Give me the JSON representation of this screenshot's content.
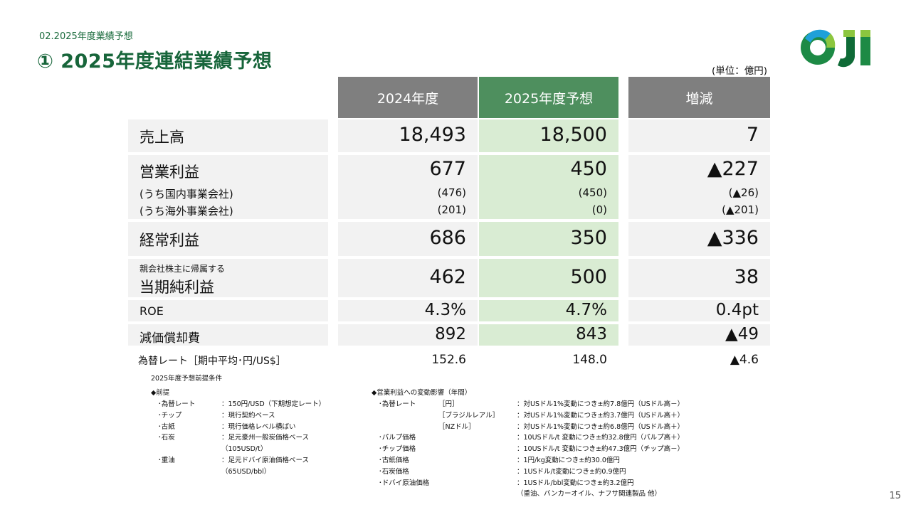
{
  "section_label": "02.2025年度業績予想",
  "title": "① 2025年度連結業績予想",
  "unit": "(単位：億円)",
  "page_number": "15",
  "logo": {
    "text": "OJI",
    "colors": {
      "green": "#1d8a45",
      "dark_green": "#0f6b37",
      "light_green": "#8cc63f",
      "blue": "#1fa0d8"
    }
  },
  "table": {
    "headers": [
      "2024年度",
      "2025年度予想",
      "増減"
    ],
    "rows": {
      "sales": {
        "label": "売上高",
        "v1": "18,493",
        "v2": "18,500",
        "v3": "7"
      },
      "op": {
        "label": "営業利益",
        "v1": "677",
        "v2": "450",
        "v3": "▲227"
      },
      "op_dom": {
        "label": "(うち国内事業会社)",
        "v1": "(476)",
        "v2": "(450)",
        "v3": "(▲26)"
      },
      "op_ovs": {
        "label": "(うち海外事業会社)",
        "v1": "(201)",
        "v2": "(0)",
        "v3": "(▲201)"
      },
      "ord": {
        "label": "経常利益",
        "v1": "686",
        "v2": "350",
        "v3": "▲336"
      },
      "net": {
        "sublabel": "親会社株主に帰属する",
        "label": "当期純利益",
        "v1": "462",
        "v2": "500",
        "v3": "38"
      },
      "roe": {
        "label": "ROE",
        "v1": "4.3%",
        "v2": "4.7%",
        "v3": "0.4pt"
      },
      "dep": {
        "label": "減価償却費",
        "v1": "892",
        "v2": "843",
        "v3": "▲49"
      },
      "fx": {
        "label": "為替レート［期中平均･円/US$］",
        "v1": "152.6",
        "v2": "148.0",
        "v3": "▲4.6"
      }
    }
  },
  "notes": {
    "title": "2025年度予想前提条件",
    "premise_head": "◆前提",
    "premises": [
      {
        "item": "･為替レート",
        "desc": "：150円/USD（下期想定レート）"
      },
      {
        "item": "･チップ",
        "desc": "：現行契約ベース"
      },
      {
        "item": "･古紙",
        "desc": "：現行価格レベル横ばい"
      },
      {
        "item": "･石炭",
        "desc": "：足元豪州一般炭価格ベース"
      },
      {
        "item": "",
        "desc": "（105USD/t）"
      },
      {
        "item": "･重油",
        "desc": "：足元ドバイ原油価格ベース"
      },
      {
        "item": "",
        "desc": "（65USD/bbl）"
      }
    ],
    "impact_head": "◆営業利益への変動影響（年間）",
    "impacts": [
      {
        "item": "･為替レート",
        "sub": "［円］",
        "desc": "：対USドル1%変動につき±約7.8億円（USドル高－）"
      },
      {
        "item": "",
        "sub": "［ブラジルレアル］",
        "desc": "：対USドル1%変動につき±約3.7億円（USドル高＋）"
      },
      {
        "item": "",
        "sub": "［NZドル］",
        "desc": "：対USドル1%変動につき±約6.8億円（USドル高＋）"
      },
      {
        "item": "･パルプ価格",
        "sub": "",
        "desc": "：10USドル/t 変動につき±約32.8億円（パルプ高＋）"
      },
      {
        "item": "･チップ価格",
        "sub": "",
        "desc": "：10USドル/t 変動につき±約47.3億円（チップ高－）"
      },
      {
        "item": "･古紙価格",
        "sub": "",
        "desc": "：1円/kg変動につき±約30.0億円"
      },
      {
        "item": "･石炭価格",
        "sub": "",
        "desc": "：1USドル/t変動につき±約0.9億円"
      },
      {
        "item": "･ドバイ原油価格",
        "sub": "",
        "desc": "：1USドル/bbl変動につき±約3.2億円"
      },
      {
        "item": "",
        "sub": "",
        "desc": "（重油、バンカーオイル、ナフサ関連製品 他）"
      }
    ]
  }
}
